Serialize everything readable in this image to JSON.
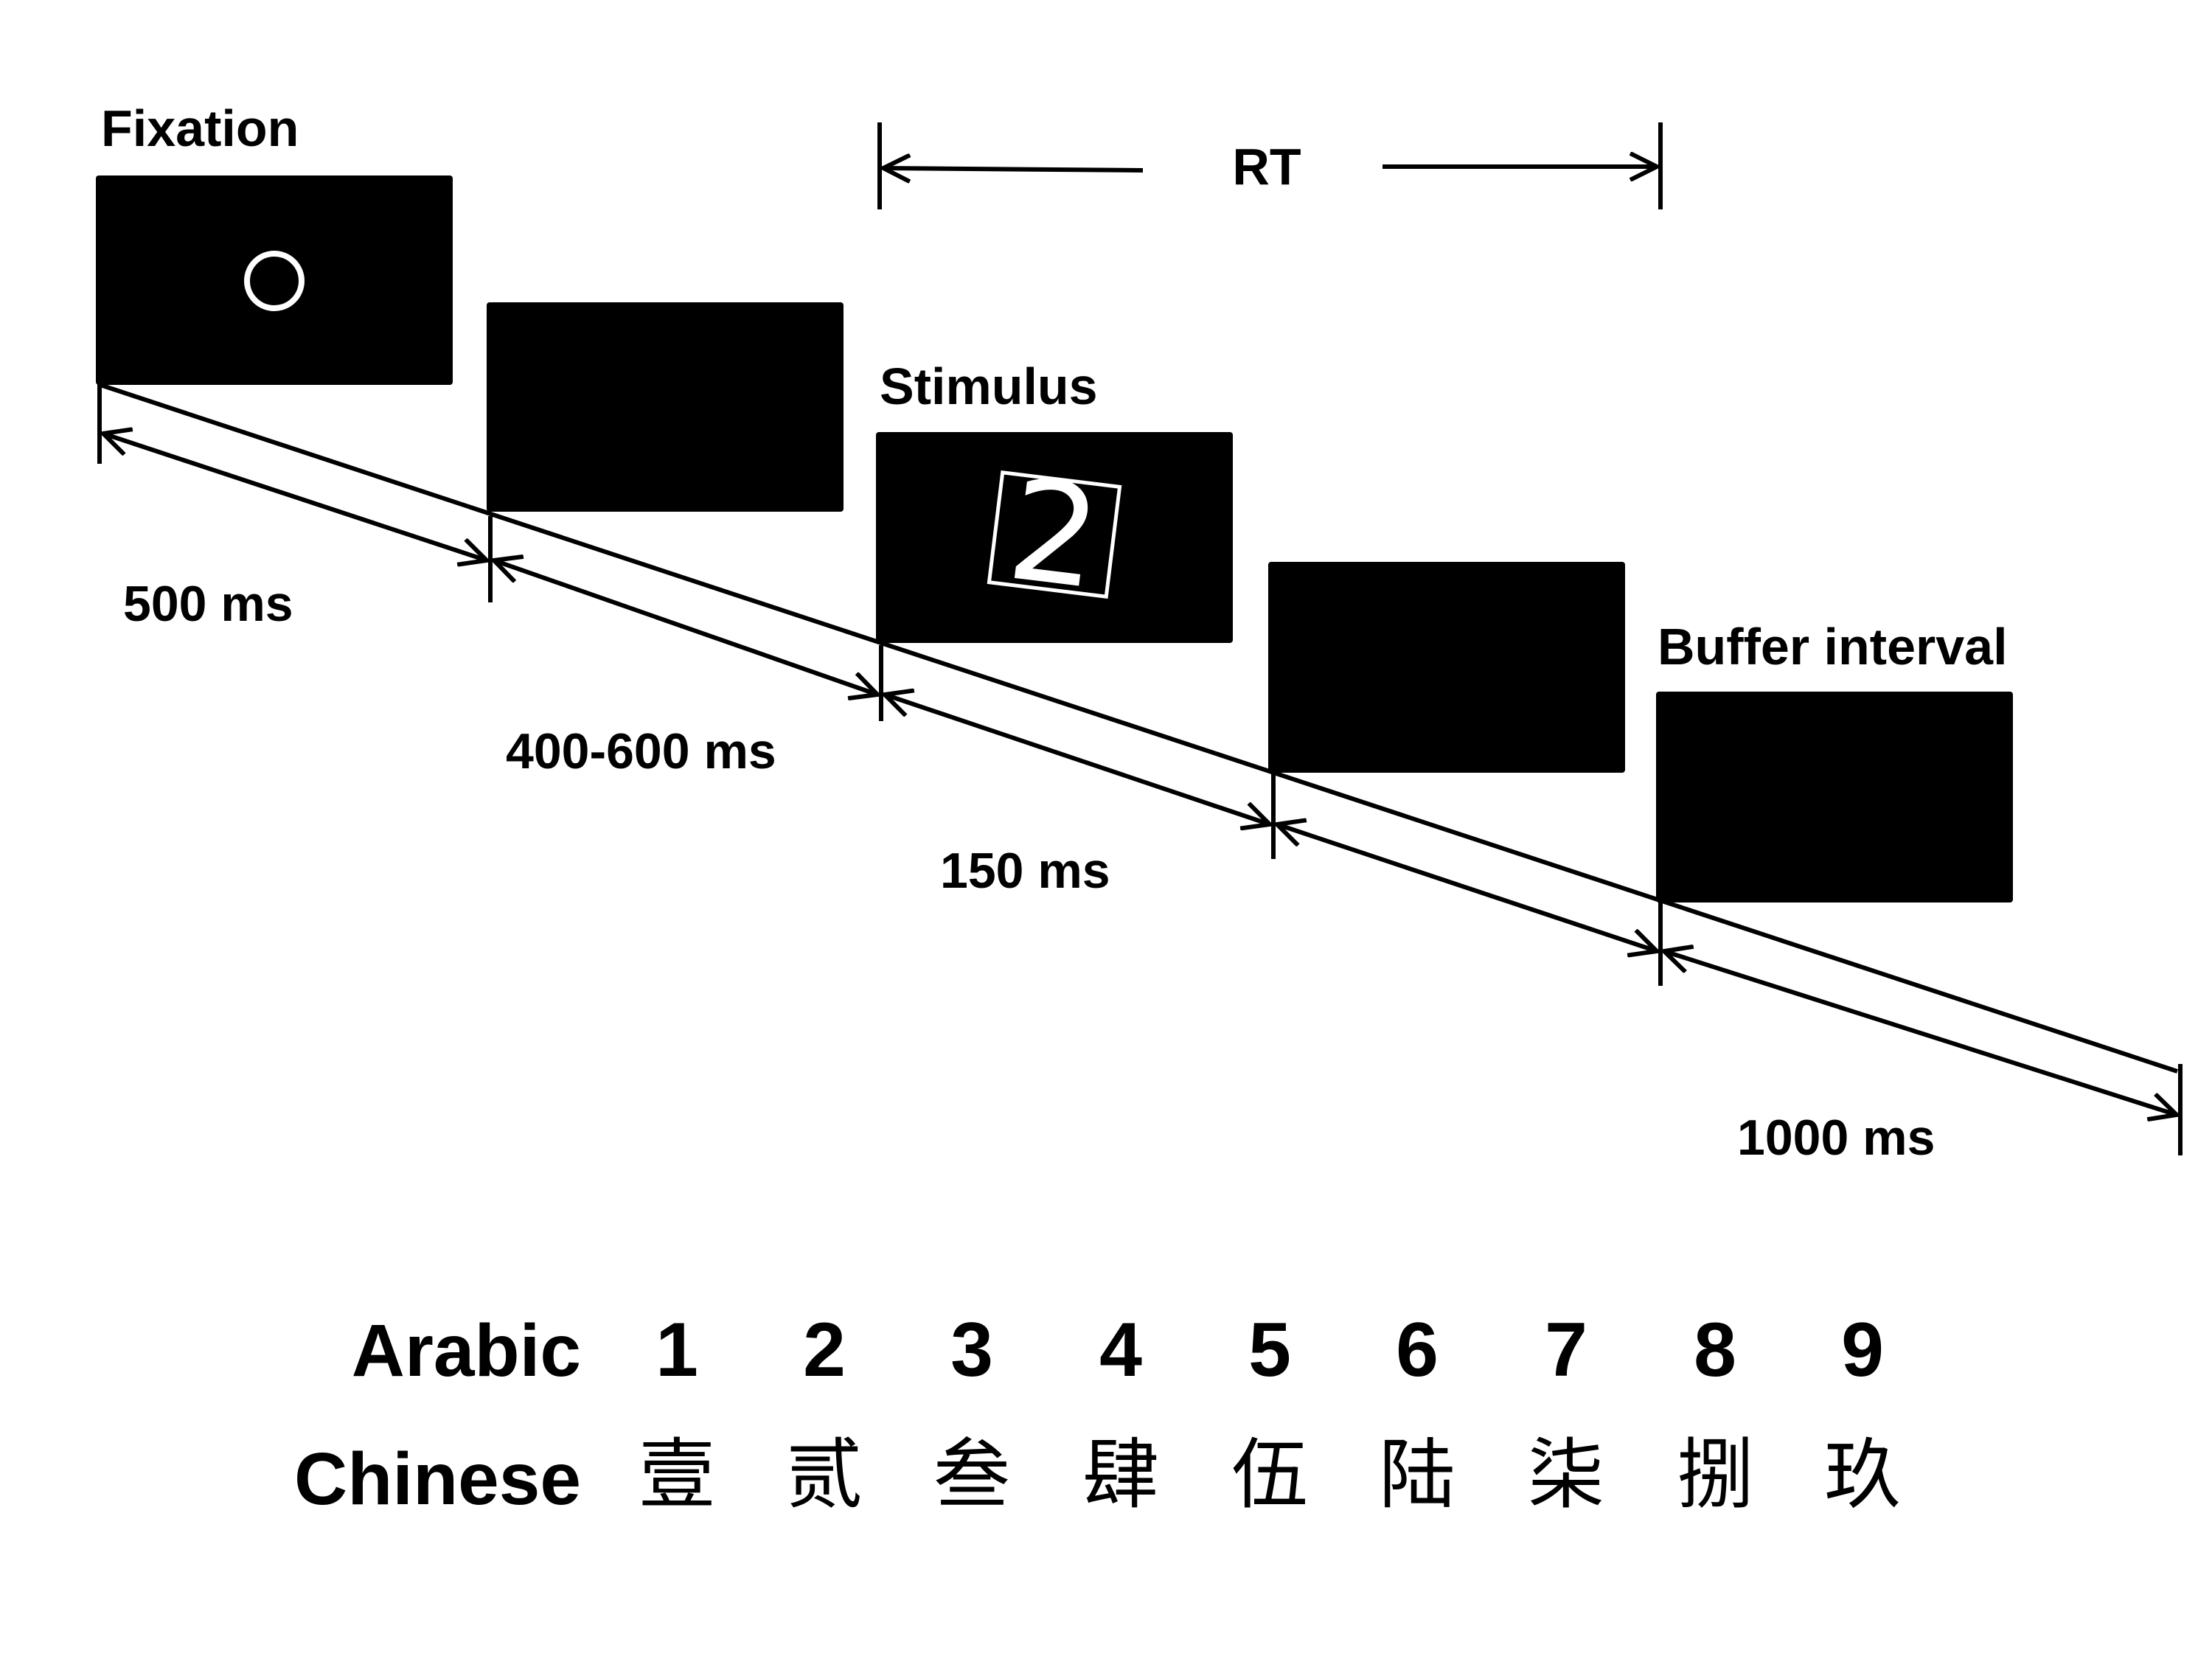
{
  "diagram": {
    "stages": [
      {
        "name": "fixation",
        "label": "Fixation",
        "symbol": "circle"
      },
      {
        "name": "blank",
        "label": ""
      },
      {
        "name": "stimulus",
        "label": "Stimulus",
        "symbol": "2"
      },
      {
        "name": "blank",
        "label": ""
      },
      {
        "name": "buffer",
        "label": "Buffer interval"
      }
    ],
    "durations": [
      "500 ms",
      "400-600 ms",
      "150 ms",
      "1000 ms"
    ],
    "rt_label": "RT"
  },
  "table": {
    "arabic_label": "Arabic",
    "chinese_label": "Chinese",
    "arabic": [
      "1",
      "2",
      "3",
      "4",
      "5",
      "6",
      "7",
      "8",
      "9"
    ],
    "chinese": [
      "壹",
      "贰",
      "叁",
      "肆",
      "伍",
      "陆",
      "柒",
      "捌",
      "玖"
    ]
  },
  "colors": {
    "screen": "#000000",
    "line": "#000000",
    "background": "#ffffff",
    "symbol": "#ffffff"
  }
}
